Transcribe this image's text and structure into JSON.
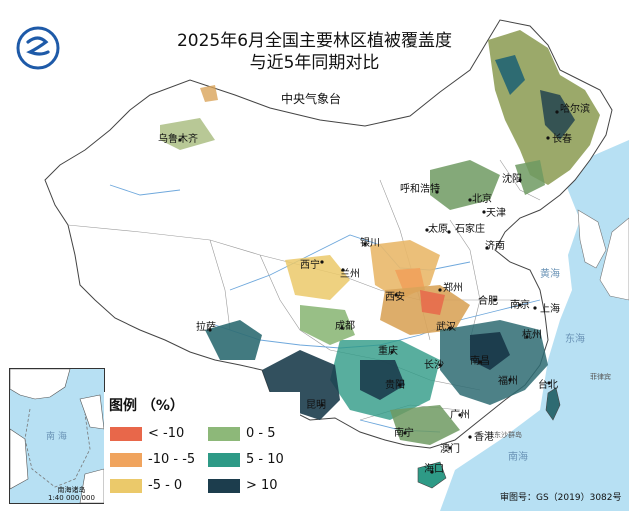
{
  "title": {
    "line1": "2025年6月全国主要林区植被覆盖度",
    "line2": "与近5年同期对比"
  },
  "issuer": "中央气象台",
  "legend": {
    "title": "图例 （%）",
    "items": [
      {
        "label": "< -10",
        "color": "#e8674a"
      },
      {
        "label": "0 - 5",
        "color": "#8db879"
      },
      {
        "label": "-10 - -5",
        "color": "#f0a45e"
      },
      {
        "label": "5 - 10",
        "color": "#2e9a86"
      },
      {
        "label": "-5 - 0",
        "color": "#ebc96a"
      },
      {
        "label": "> 10",
        "color": "#1c3d4d"
      }
    ]
  },
  "cities": {
    "harbin": "哈尔滨",
    "changchun": "长春",
    "shenyang": "沈阳",
    "urumqi": "乌鲁木齐",
    "hohhot": "呼和浩特",
    "beijing": "北京",
    "tianjin": "天津",
    "taiyuan": "太原",
    "shijiazhuang": "石家庄",
    "jinan": "济南",
    "yinchuan": "银川",
    "xining": "西宁",
    "lanzhou": "兰州",
    "xian": "西安",
    "zhengzhou": "郑州",
    "hefei": "合肥",
    "nanjing": "南京",
    "shanghai": "上海",
    "lhasa": "拉萨",
    "chengdu": "成都",
    "wuhan": "武汉",
    "hangzhou": "杭州",
    "chongqing": "重庆",
    "changsha": "长沙",
    "nanchang": "南昌",
    "guiyang": "贵阳",
    "fuzhou": "福州",
    "taipei": "台北",
    "kunming": "昆明",
    "guangzhou": "广州",
    "nanning": "南宁",
    "hongkong": "香港",
    "macau": "澳门",
    "haikou": "海口"
  },
  "seas": {
    "huanghai": "黄海",
    "donghai": "东海",
    "nanhai": "南海",
    "inset_nanhai": "南 海"
  },
  "countries": {
    "philippines": "菲律宾",
    "dongsha": "东沙群岛"
  },
  "inset": {
    "label_line1": "南海诸岛",
    "label_line2": "1:40 000 000"
  },
  "approval": "审图号：GS（2019）3082号",
  "colors": {
    "land": "#ffffff",
    "sea": "#b7e0f3",
    "border": "#555555",
    "river": "#6fa8dc"
  }
}
